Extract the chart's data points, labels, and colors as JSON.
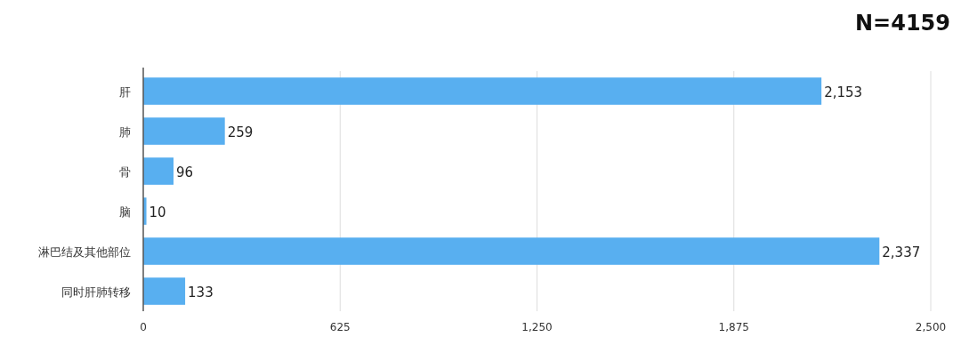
{
  "chart_data": {
    "type": "bar",
    "orientation": "horizontal",
    "title": "N=4159",
    "categories": [
      "肝",
      "肺",
      "骨",
      "脑",
      "淋巴结及其他部位",
      "同时肝肺转移"
    ],
    "values": [
      2153,
      259,
      96,
      10,
      2337,
      133
    ],
    "value_labels": [
      "2,153",
      "259",
      "96",
      "10",
      "2,337",
      "133"
    ],
    "color": "#58aff0",
    "xlim": [
      0,
      2500
    ],
    "xticks": [
      0,
      625,
      {
        "value": 1250,
        "label": "1,250"
      },
      {
        "value": 1875,
        "label": "1,875"
      },
      {
        "value": 2500,
        "label": "2,500"
      }
    ],
    "grid": "x"
  }
}
